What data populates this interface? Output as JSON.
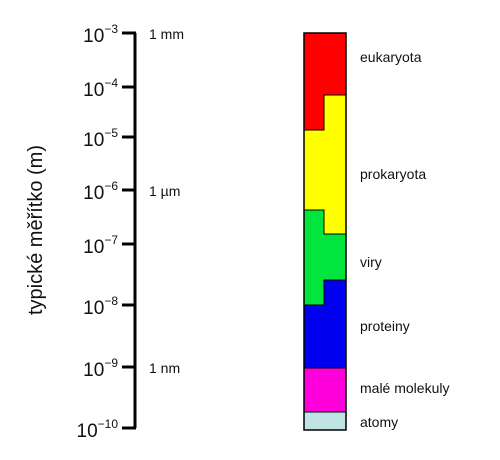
{
  "y_axis_label": "typické měřítko (m)",
  "ticks": [
    {
      "base": "10",
      "exp": "−3",
      "value": -3
    },
    {
      "base": "10",
      "exp": "−4",
      "value": -4
    },
    {
      "base": "10",
      "exp": "−5",
      "value": -5
    },
    {
      "base": "10",
      "exp": "−6",
      "value": -6
    },
    {
      "base": "10",
      "exp": "−7",
      "value": -7
    },
    {
      "base": "10",
      "exp": "−8",
      "value": -8
    },
    {
      "base": "10",
      "exp": "−9",
      "value": -9
    },
    {
      "base": "10",
      "exp": "−10",
      "value": -10
    }
  ],
  "markers": [
    {
      "label": "1 mm",
      "value": -3
    },
    {
      "label": "1 µm",
      "value": -6
    },
    {
      "label": "1 nm",
      "value": -9
    }
  ],
  "categories": [
    {
      "label": "eukaryota",
      "color": "#ff0000"
    },
    {
      "label": "prokaryota",
      "color": "#ffff00"
    },
    {
      "label": "viry",
      "color": "#00e63c"
    },
    {
      "label": "proteiny",
      "color": "#0000ee"
    },
    {
      "label": "malé molekuly",
      "color": "#ff00dd"
    },
    {
      "label": "atomy",
      "color": "#c0e4e4"
    }
  ]
}
